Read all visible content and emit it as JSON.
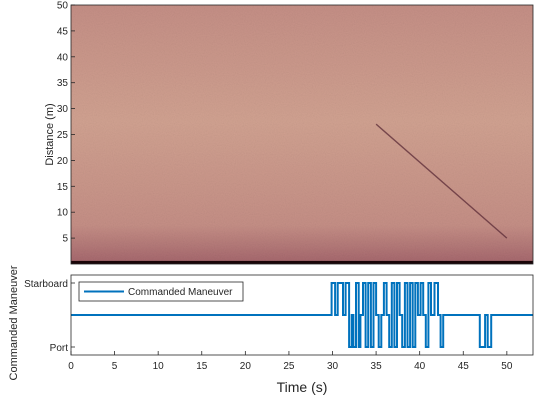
{
  "chart_data": [
    {
      "type": "heatmap",
      "title": "",
      "xlabel": "",
      "ylabel": "Distance (m)",
      "xlim": [
        0,
        53
      ],
      "ylim": [
        0,
        50
      ],
      "yticks": [
        5,
        10,
        15,
        20,
        25,
        30,
        35,
        40,
        45,
        50
      ],
      "colors": {
        "base": "#c58f86",
        "light": "#d1a291",
        "dark": "#a86a6f",
        "edge": "#1a0508"
      },
      "track": {
        "x": [
          35,
          50
        ],
        "y": [
          27,
          5
        ]
      }
    },
    {
      "type": "line",
      "title": "",
      "xlabel": "Time (s)",
      "ylabel": "Commanded Maneuver",
      "xlim": [
        0,
        53
      ],
      "ylim": [
        0,
        1
      ],
      "xticks": [
        0,
        5,
        10,
        15,
        20,
        25,
        30,
        35,
        40,
        45,
        50
      ],
      "ytick_labels": [
        "Port",
        "Starboard"
      ],
      "legend": "top-left",
      "series": [
        {
          "name": "Commanded Maneuver",
          "color": "#0072bd",
          "x": [
            0,
            29.9,
            29.9,
            30.3,
            30.3,
            30.6,
            30.6,
            31.2,
            31.2,
            31.5,
            31.5,
            31.9,
            31.9,
            32.2,
            32.2,
            32.4,
            32.4,
            32.7,
            32.7,
            33.0,
            33.0,
            33.2,
            33.2,
            33.5,
            33.5,
            33.8,
            33.8,
            34.1,
            34.1,
            34.4,
            34.4,
            34.7,
            34.7,
            35.0,
            35.0,
            35.3,
            35.3,
            35.6,
            35.6,
            35.9,
            35.9,
            36.2,
            36.2,
            36.5,
            36.5,
            36.8,
            36.8,
            37.1,
            37.1,
            37.4,
            37.4,
            37.7,
            37.7,
            38.0,
            38.0,
            38.3,
            38.3,
            38.6,
            38.6,
            38.9,
            38.9,
            39.2,
            39.2,
            39.5,
            39.5,
            39.8,
            39.8,
            40.1,
            40.1,
            40.4,
            40.4,
            40.7,
            40.7,
            41.0,
            41.0,
            41.3,
            41.3,
            41.7,
            41.7,
            42.1,
            42.1,
            42.4,
            42.4,
            42.7,
            42.7,
            46.9,
            46.9,
            47.5,
            47.5,
            47.8,
            47.8,
            48.2,
            48.2,
            48.5,
            48.5,
            53
          ],
          "y": [
            0.5,
            0.5,
            1,
            1,
            0.5,
            0.5,
            1,
            1,
            0.5,
            0.5,
            1,
            1,
            0,
            0,
            0.5,
            0.5,
            0,
            0,
            1,
            1,
            0,
            0,
            0.5,
            0.5,
            1,
            1,
            0,
            0,
            1,
            1,
            0,
            0,
            1,
            1,
            0.5,
            0.5,
            0,
            0,
            0.5,
            0.5,
            1,
            1,
            0.5,
            0.5,
            0,
            0,
            1,
            1,
            0,
            0,
            1,
            1,
            0.5,
            0.5,
            0,
            0,
            1,
            1,
            0,
            0,
            1,
            1,
            0,
            0,
            1,
            1,
            0.5,
            0.5,
            1,
            1,
            0.5,
            0.5,
            0,
            0,
            1,
            1,
            0.5,
            0.5,
            1,
            1,
            0.5,
            0.5,
            0,
            0,
            0.5,
            0.5,
            0,
            0,
            0.5,
            0.5,
            0,
            0,
            0.5,
            0.5,
            0.5,
            0.5
          ]
        }
      ]
    }
  ]
}
